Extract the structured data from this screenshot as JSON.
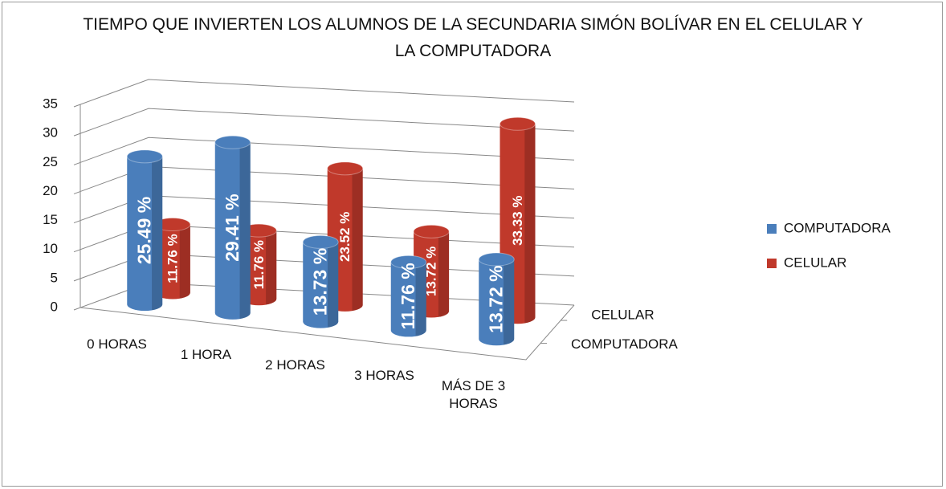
{
  "chart_data": {
    "type": "cylinder3d",
    "title": "TIEMPO QUE INVIERTEN LOS ALUMNOS DE LA SECUNDARIA SIMÓN BOLÍVAR EN EL CELULAR Y LA COMPUTADORA",
    "categories": [
      "0 HORAS",
      "1 HORA",
      "2 HORAS",
      "3 HORAS",
      "MÁS DE 3 HORAS"
    ],
    "series": [
      {
        "name": "COMPUTADORA",
        "color": "#4a7ebb",
        "values": [
          25.49,
          29.41,
          13.73,
          11.76,
          13.72
        ],
        "value_labels": [
          "25.49 %",
          "29.41 %",
          "13.73 %",
          "11.76 %",
          "13.72 %"
        ]
      },
      {
        "name": "CELULAR",
        "color": "#c0392b",
        "values": [
          11.76,
          11.76,
          23.52,
          13.72,
          33.33
        ],
        "value_labels": [
          "11.76 %",
          "11.76 %",
          "23.52 %",
          "13.72 %",
          "33.33 %"
        ]
      }
    ],
    "ylim": [
      0,
      35
    ],
    "yticks": [
      0,
      5,
      10,
      15,
      20,
      25,
      30,
      35
    ],
    "grid": true,
    "legend": "right"
  }
}
